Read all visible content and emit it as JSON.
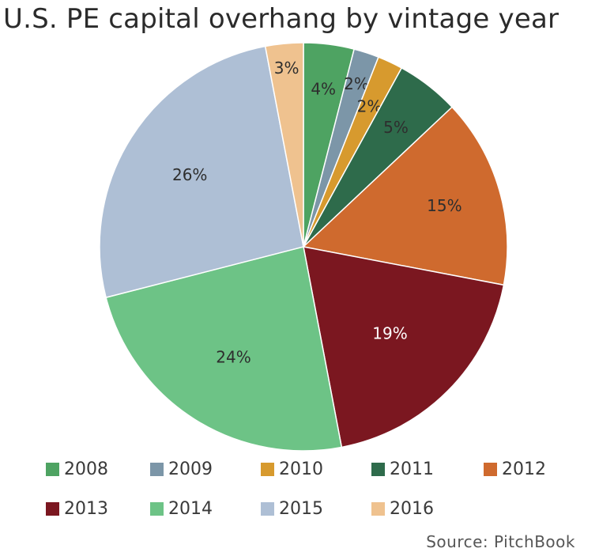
{
  "chart_data": {
    "type": "pie",
    "title": "U.S. PE capital overhang by vintage year",
    "slices": [
      {
        "label": "2008",
        "value": 4,
        "display": "4%",
        "color": "#4ea362",
        "text_color": "#2e2e2e"
      },
      {
        "label": "2009",
        "value": 2,
        "display": "2%",
        "color": "#7c96a8",
        "text_color": "#2e2e2e"
      },
      {
        "label": "2010",
        "value": 2,
        "display": "2%",
        "color": "#d79a2e",
        "text_color": "#2e2e2e"
      },
      {
        "label": "2011",
        "value": 5,
        "display": "5%",
        "color": "#2e6b4b",
        "text_color": "#2e2e2e"
      },
      {
        "label": "2012",
        "value": 15,
        "display": "15%",
        "color": "#cf6a2e",
        "text_color": "#2e2e2e"
      },
      {
        "label": "2013",
        "value": 19,
        "display": "19%",
        "color": "#7b1720",
        "text_color": "#ffffff"
      },
      {
        "label": "2014",
        "value": 24,
        "display": "24%",
        "color": "#6dc386",
        "text_color": "#2e2e2e"
      },
      {
        "label": "2015",
        "value": 26,
        "display": "26%",
        "color": "#aebfd5",
        "text_color": "#2e2e2e"
      },
      {
        "label": "2016",
        "value": 3,
        "display": "3%",
        "color": "#efc28f",
        "text_color": "#2e2e2e"
      }
    ],
    "legend_position": "bottom"
  },
  "source": "Source: PitchBook"
}
